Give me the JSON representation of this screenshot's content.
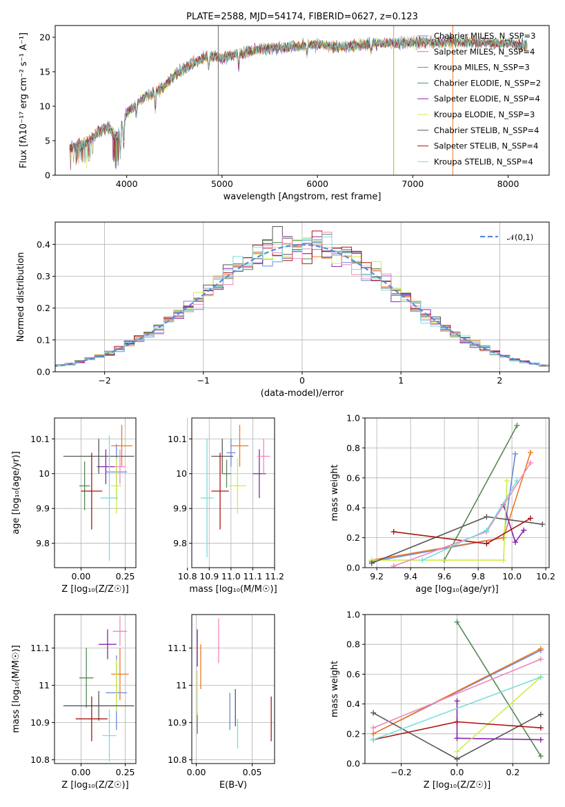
{
  "colors": [
    "#6688dd",
    "#ee7722",
    "#558855",
    "#8822aa",
    "#ccee44",
    "#555555",
    "#aa1111",
    "#ee88bb",
    "#77dddd"
  ],
  "chart_data": [
    {
      "id": "spectrum",
      "type": "line",
      "title": "PLATE=2588, MJD=54174, FIBERID=0627, z=0.123",
      "xlabel": "wavelength [Angstrom, rest frame]",
      "ylabel": "Flux [fλ10⁻¹⁷ erg cm⁻² s⁻¹ A⁻¹]",
      "xlim": [
        3250,
        8430
      ],
      "ylim": [
        0,
        21.7
      ],
      "xticks": [
        4000,
        5000,
        6000,
        7000,
        8000
      ],
      "yticks": [
        0,
        5,
        10,
        15,
        20
      ],
      "legend_position": "top-right",
      "series": [
        {
          "name": "Chabrier MILES, N_SSP=3",
          "color": "#6688dd"
        },
        {
          "name": "Salpeter MILES, N_SSP=4",
          "color": "#ee7722"
        },
        {
          "name": "Kroupa MILES, N_SSP=3",
          "color": "#998833"
        },
        {
          "name": "Chabrier ELODIE, N_SSP=2",
          "color": "#558877"
        },
        {
          "name": "Salpeter ELODIE, N_SSP=4",
          "color": "#8822aa"
        },
        {
          "name": "Kroupa ELODIE, N_SSP=3",
          "color": "#ccee44"
        },
        {
          "name": "Chabrier STELIB, N_SSP=4",
          "color": "#555555"
        },
        {
          "name": "Salpeter STELIB, N_SSP=4",
          "color": "#aa1111"
        },
        {
          "name": "Kroupa STELIB, N_SSP=4",
          "color": "#77dddd"
        }
      ],
      "envelope": {
        "x": [
          3400,
          3500,
          3600,
          3700,
          3800,
          3900,
          4000,
          4100,
          4200,
          4300,
          4400,
          4500,
          4600,
          4700,
          4800,
          4900,
          5000,
          5100,
          5200,
          5300,
          5400,
          5500,
          5600,
          5700,
          5800,
          5900,
          6000,
          6100,
          6200,
          6300,
          6400,
          6500,
          6600,
          6700,
          6800,
          6900,
          7000,
          7100,
          7200,
          7300,
          7400,
          7500,
          7600,
          7700,
          7800,
          7900,
          8000,
          8100,
          8200
        ],
        "y": [
          4.0,
          4.3,
          4.8,
          6.3,
          7.0,
          5.5,
          9.0,
          10.3,
          11.5,
          12.0,
          13.0,
          14.5,
          15.5,
          16.2,
          17.0,
          17.3,
          17.0,
          17.4,
          17.6,
          18.0,
          18.3,
          18.4,
          18.5,
          18.6,
          18.7,
          18.8,
          19.0,
          18.8,
          18.6,
          18.7,
          18.8,
          19.0,
          19.1,
          19.1,
          19.2,
          19.1,
          19.2,
          19.3,
          19.2,
          19.3,
          19.4,
          19.3,
          19.3,
          19.2,
          19.2,
          19.2,
          19.1,
          19.0,
          18.8
        ]
      }
    },
    {
      "id": "residuals",
      "type": "step",
      "xlabel": "(data-model)/error",
      "ylabel": "Normed distribution",
      "xlim": [
        -2.5,
        2.5
      ],
      "ylim": [
        0,
        0.47
      ],
      "xticks": [
        -2,
        -1,
        0,
        1,
        2
      ],
      "yticks": [
        0.0,
        0.1,
        0.2,
        0.3,
        0.4
      ],
      "reference": {
        "name": "𝒩(0,1)",
        "color": "#5588dd"
      },
      "legend_position": "top-right"
    },
    {
      "id": "age-vs-Z",
      "type": "errorbar",
      "xlabel": "Z [log₁₀(Z/Z☉)]",
      "ylabel": "age  [log₁₀(age/yr)]",
      "xlim": [
        -0.15,
        0.31
      ],
      "ylim": [
        9.73,
        10.16
      ],
      "xticks": [
        0.0,
        0.25
      ],
      "yticks": [
        9.8,
        9.9,
        10.0,
        10.1
      ],
      "points": [
        {
          "x": 0.2,
          "y": 10.005,
          "xerr": 0.06,
          "yerr": 0.08
        },
        {
          "x": 0.23,
          "y": 10.08,
          "xerr": 0.06,
          "yerr": 0.06
        },
        {
          "x": 0.02,
          "y": 9.965,
          "xerr": 0.03,
          "yerr": 0.07
        },
        {
          "x": 0.14,
          "y": 10.02,
          "xerr": 0.05,
          "yerr": 0.05
        },
        {
          "x": 0.2,
          "y": 9.965,
          "xerr": 0.03,
          "yerr": 0.08
        },
        {
          "x": 0.1,
          "y": 10.05,
          "xerr": 0.2,
          "yerr": 0.05
        },
        {
          "x": 0.06,
          "y": 9.95,
          "xerr": 0.06,
          "yerr": 0.11
        },
        {
          "x": 0.22,
          "y": 10.02,
          "xerr": 0.03,
          "yerr": 0.05
        },
        {
          "x": 0.16,
          "y": 9.93,
          "xerr": 0.05,
          "yerr": 0.18
        }
      ]
    },
    {
      "id": "age-vs-mass",
      "type": "errorbar",
      "xlabel": "mass [log₁₀(M/M☉)]",
      "ylabel": "",
      "xlim": [
        10.82,
        11.2
      ],
      "ylim": [
        9.73,
        10.16
      ],
      "xticks": [
        10.8,
        10.9,
        11.0,
        11.1,
        11.2
      ],
      "yticks": [
        9.8,
        9.9,
        10.0,
        10.1
      ],
      "points": [
        {
          "x": 11.0,
          "y": 10.06,
          "xerr": 0.02,
          "yerr": 0.04
        },
        {
          "x": 11.04,
          "y": 10.08,
          "xerr": 0.04,
          "yerr": 0.06
        },
        {
          "x": 10.98,
          "y": 10.0,
          "xerr": 0.02,
          "yerr": 0.04
        },
        {
          "x": 11.13,
          "y": 10.0,
          "xerr": 0.03,
          "yerr": 0.07
        },
        {
          "x": 11.03,
          "y": 9.965,
          "xerr": 0.04,
          "yerr": 0.08
        },
        {
          "x": 10.96,
          "y": 10.05,
          "xerr": 0.05,
          "yerr": 0.05
        },
        {
          "x": 10.95,
          "y": 9.95,
          "xerr": 0.04,
          "yerr": 0.11
        },
        {
          "x": 11.15,
          "y": 10.05,
          "xerr": 0.03,
          "yerr": 0.05
        },
        {
          "x": 10.89,
          "y": 9.93,
          "xerr": 0.03,
          "yerr": 0.17
        }
      ]
    },
    {
      "id": "weight-vs-age",
      "type": "line",
      "xlabel": "age  [log₁₀(age/yr)]",
      "ylabel": "mass weight",
      "xlim": [
        9.13,
        10.22
      ],
      "ylim": [
        0,
        1.0
      ],
      "xticks": [
        9.2,
        9.4,
        9.6,
        9.8,
        10.0,
        10.2
      ],
      "yticks": [
        0.0,
        0.2,
        0.4,
        0.6,
        0.8,
        1.0
      ],
      "series": [
        {
          "x": [
            9.17,
            9.95,
            10.02
          ],
          "y": [
            0.04,
            0.2,
            0.76
          ]
        },
        {
          "x": [
            9.17,
            9.95,
            10.11
          ],
          "y": [
            0.05,
            0.2,
            0.77
          ]
        },
        {
          "x": [
            9.6,
            10.03
          ],
          "y": [
            0.05,
            0.95
          ]
        },
        {
          "x": [
            9.95,
            10.02,
            10.07
          ],
          "y": [
            0.42,
            0.17,
            0.25
          ]
        },
        {
          "x": [
            9.17,
            9.95,
            9.97
          ],
          "y": [
            0.05,
            0.05,
            0.58
          ]
        },
        {
          "x": [
            9.17,
            9.85,
            10.18
          ],
          "y": [
            0.03,
            0.34,
            0.29
          ]
        },
        {
          "x": [
            9.3,
            9.85,
            10.11
          ],
          "y": [
            0.24,
            0.16,
            0.33
          ]
        },
        {
          "x": [
            9.3,
            9.85,
            10.11
          ],
          "y": [
            0.01,
            0.24,
            0.7
          ]
        },
        {
          "x": [
            9.47,
            9.85,
            10.03
          ],
          "y": [
            0.05,
            0.25,
            0.58
          ]
        }
      ]
    },
    {
      "id": "mass-vs-Z",
      "type": "errorbar",
      "xlabel": "Z [log₁₀(Z/Z☉)]",
      "ylabel": "mass [log₁₀(M/M☉)]",
      "xlim": [
        -0.15,
        0.31
      ],
      "ylim": [
        10.79,
        11.19
      ],
      "xticks": [
        0.0,
        0.25
      ],
      "yticks": [
        10.8,
        10.9,
        11.0,
        11.1
      ],
      "points": [
        {
          "x": 0.2,
          "y": 10.98,
          "xerr": 0.06,
          "yerr": 0.1
        },
        {
          "x": 0.22,
          "y": 11.03,
          "xerr": 0.05,
          "yerr": 0.07
        },
        {
          "x": 0.03,
          "y": 11.02,
          "xerr": 0.04,
          "yerr": 0.08
        },
        {
          "x": 0.15,
          "y": 11.11,
          "xerr": 0.05,
          "yerr": 0.04
        },
        {
          "x": 0.2,
          "y": 11.0,
          "xerr": 0.03,
          "yerr": 0.07
        },
        {
          "x": 0.1,
          "y": 10.945,
          "xerr": 0.2,
          "yerr": 0.04
        },
        {
          "x": 0.06,
          "y": 10.91,
          "xerr": 0.09,
          "yerr": 0.06
        },
        {
          "x": 0.22,
          "y": 11.145,
          "xerr": 0.04,
          "yerr": 0.04
        },
        {
          "x": 0.16,
          "y": 10.865,
          "xerr": 0.04,
          "yerr": 0.07
        }
      ]
    },
    {
      "id": "mass-vs-ebv",
      "type": "errorbar",
      "xlabel": "E(B-V)",
      "ylabel": "",
      "xlim": [
        -0.004,
        0.07
      ],
      "ylim": [
        10.79,
        11.19
      ],
      "xticks": [
        0.0,
        0.05
      ],
      "yticks": [
        10.8,
        10.9,
        11.0,
        11.1
      ],
      "points": [
        {
          "x": 0.03,
          "y": 10.93,
          "xerr": 0,
          "yerr": 0.05
        },
        {
          "x": 0.004,
          "y": 11.05,
          "xerr": 0,
          "yerr": 0.06
        },
        {
          "x": 0.001,
          "y": 10.9,
          "xerr": 0,
          "yerr": 0.03
        },
        {
          "x": 0.001,
          "y": 11.1,
          "xerr": 0,
          "yerr": 0.05
        },
        {
          "x": 0.001,
          "y": 10.98,
          "xerr": 0,
          "yerr": 0.06
        },
        {
          "x": 0.035,
          "y": 10.94,
          "xerr": 0,
          "yerr": 0.05
        },
        {
          "x": 0.067,
          "y": 10.91,
          "xerr": 0,
          "yerr": 0.06
        },
        {
          "x": 0.02,
          "y": 11.12,
          "xerr": 0,
          "yerr": 0.06
        },
        {
          "x": 0.037,
          "y": 10.87,
          "xerr": 0,
          "yerr": 0.04
        }
      ]
    },
    {
      "id": "weight-vs-Z",
      "type": "line",
      "xlabel": "Z [log₁₀(Z/Z☉)]",
      "ylabel": "mass weight",
      "xlim": [
        -0.33,
        0.33
      ],
      "ylim": [
        0,
        1.0
      ],
      "xticks": [
        -0.2,
        0.0,
        0.2
      ],
      "yticks": [
        0.0,
        0.2,
        0.4,
        0.6,
        0.8,
        1.0
      ],
      "series": [
        {
          "x": [
            -0.3,
            0.3
          ],
          "y": [
            0.2,
            0.76
          ]
        },
        {
          "x": [
            -0.3,
            0.3
          ],
          "y": [
            0.2,
            0.77
          ]
        },
        {
          "x": [
            0.0,
            0.3
          ],
          "y": [
            0.95,
            0.05
          ]
        },
        {
          "x": [
            0.0,
            0.0,
            0.3
          ],
          "y": [
            0.42,
            0.17,
            0.16
          ]
        },
        {
          "x": [
            0.0,
            0.3
          ],
          "y": [
            0.08,
            0.58
          ]
        },
        {
          "x": [
            -0.3,
            0.0,
            0.3
          ],
          "y": [
            0.34,
            0.03,
            0.33
          ]
        },
        {
          "x": [
            -0.3,
            0.0,
            0.3
          ],
          "y": [
            0.16,
            0.28,
            0.24
          ]
        },
        {
          "x": [
            -0.3,
            0.3
          ],
          "y": [
            0.24,
            0.7
          ]
        },
        {
          "x": [
            -0.3,
            0.3
          ],
          "y": [
            0.16,
            0.58
          ]
        }
      ]
    }
  ]
}
